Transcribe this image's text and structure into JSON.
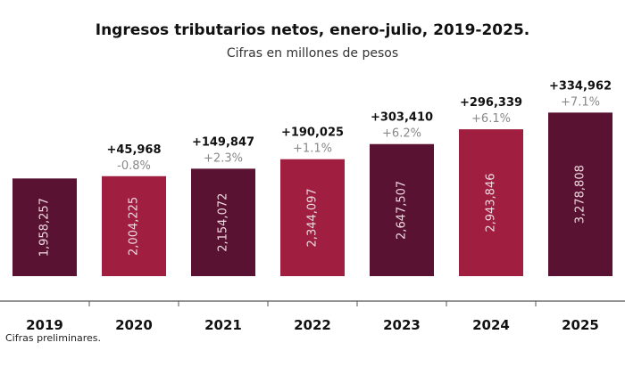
{
  "chart_data": {
    "type": "bar",
    "title": "Ingresos tributarios netos, enero-julio, 2019-2025.",
    "subtitle": "Cifras en millones de pesos",
    "categories": [
      "2019",
      "2020",
      "2021",
      "2022",
      "2023",
      "2024",
      "2025"
    ],
    "values": [
      1958257,
      2004225,
      2154072,
      2344097,
      2647507,
      2943846,
      3278808
    ],
    "changes": [
      "",
      "+45,968",
      "+149,847",
      "+190,025",
      "+303,410",
      "+296,339",
      "+334,962"
    ],
    "pct_changes": [
      "",
      "-0.8%",
      "+2.3%",
      "+1.1%",
      "+6.2%",
      "+6.1%",
      "+7.1%"
    ],
    "colors": [
      "#5a1232",
      "#a01f40",
      "#5a1232",
      "#a01f40",
      "#5a1232",
      "#a01f40",
      "#5a1232"
    ],
    "footnote": "Cifras preliminares.",
    "grid": false
  }
}
